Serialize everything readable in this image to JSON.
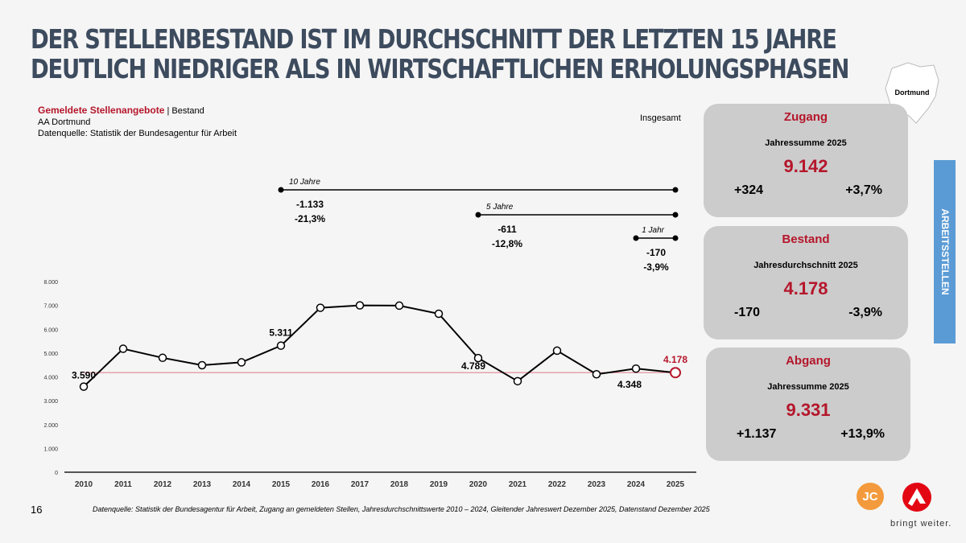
{
  "title": [
    "DER STELLENBESTAND IST IM DURCHSCHNITT DER LETZTEN 15 JAHRE",
    "DEUTLICH NIEDRIGER ALS IN WIRTSCHAFTLICHEN ERHOLUNGSPHASEN"
  ],
  "meta": {
    "series": "Gemeldete Stellenangebote",
    "sep": "|",
    "type": "Bestand",
    "region": "AA Dortmund",
    "source": "Datenquelle: Statistik der Bundesagentur für Arbeit",
    "filter": "Insgesamt"
  },
  "map_label": "Dortmund",
  "side_label": "ARBEITSSTELLEN",
  "cards": [
    {
      "head": "Zugang",
      "sub": "Jahressumme 2025",
      "value": "9.142",
      "abs": "+324",
      "pct": "+3,7%"
    },
    {
      "head": "Bestand",
      "sub": "Jahresdurchschnitt 2025",
      "value": "4.178",
      "abs": "-170",
      "pct": "-3,9%"
    },
    {
      "head": "Abgang",
      "sub": "Jahressumme 2025",
      "value": "9.331",
      "abs": "+1.137",
      "pct": "+13,9%"
    }
  ],
  "footnote": "Datenquelle: Statistik der Bundesagentur für Arbeit, Zugang an gemeldeten Stellen, Jahresdurchschnittswerte 2010 – 2024, Gleitender Jahreswert Dezember 2025, Datenstand Dezember 2025",
  "page_number": "16",
  "logos": {
    "jc": "JC",
    "ba_tagline": "bringt weiter."
  },
  "colors": {
    "title": "#3d4b5e",
    "accent": "#b5162b",
    "side": "#5b9bd5",
    "card": "#cccccc",
    "refline": "#e8a0aa"
  },
  "chart_data": {
    "type": "line",
    "categories": [
      "2010",
      "2011",
      "2012",
      "2013",
      "2014",
      "2015",
      "2016",
      "2017",
      "2018",
      "2019",
      "2020",
      "2021",
      "2022",
      "2023",
      "2024",
      "2025"
    ],
    "values": [
      3590,
      5180,
      4800,
      4490,
      4610,
      5311,
      6900,
      7000,
      6990,
      6650,
      4789,
      3820,
      5100,
      4110,
      4348,
      4178
    ],
    "ylim": [
      0,
      8000
    ],
    "yticks": [
      "0",
      "1.000",
      "2.000",
      "3.000",
      "4.000",
      "5.000",
      "6.000",
      "7.000",
      "8.000"
    ],
    "reference_line": 4178,
    "data_labels": [
      {
        "year": "2010",
        "text": "3.590"
      },
      {
        "year": "2015",
        "text": "5.311"
      },
      {
        "year": "2020",
        "text": "4.789"
      },
      {
        "year": "2024",
        "text": "4.348"
      },
      {
        "year": "2025",
        "text": "4.178"
      }
    ],
    "spans": [
      {
        "label": "10 Jahre",
        "from": "2015",
        "to": "2025",
        "abs": "-1.133",
        "pct": "-21,3%"
      },
      {
        "label": "5 Jahre",
        "from": "2020",
        "to": "2025",
        "abs": "-611",
        "pct": "-12,8%"
      },
      {
        "label": "1 Jahr",
        "from": "2024",
        "to": "2025",
        "abs": "-170",
        "pct": "-3,9%"
      }
    ]
  }
}
